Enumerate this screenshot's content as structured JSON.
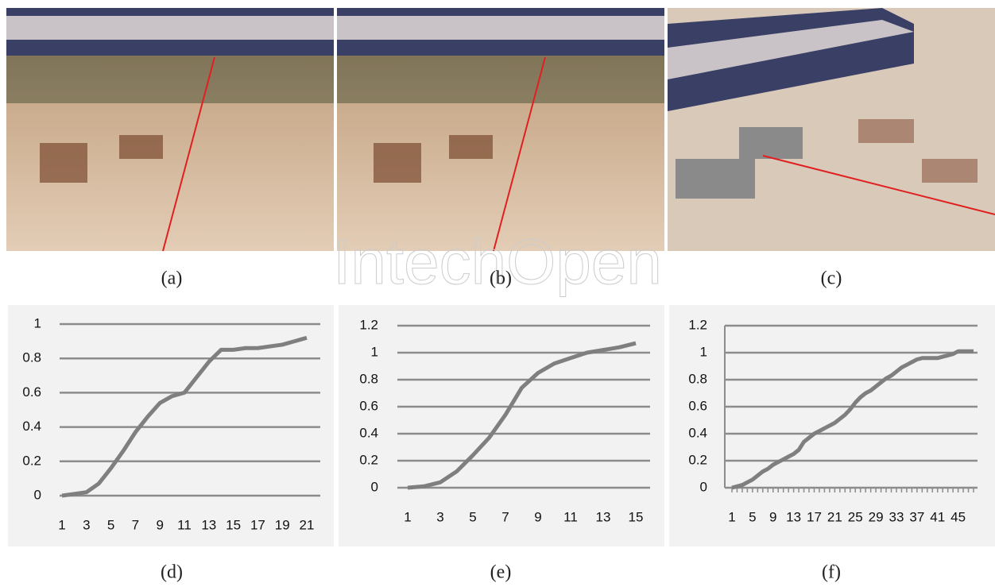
{
  "watermark": "IntechOpen",
  "captions": [
    "(a)",
    "(b)",
    "(c)",
    "(d)",
    "(e)",
    "(f)"
  ],
  "chart_data": [
    {
      "type": "line",
      "color": "#7f7f7f",
      "grid": true,
      "categories": [
        "1",
        null,
        "3",
        null,
        "5",
        null,
        "7",
        null,
        "9",
        null,
        "11",
        null,
        "13",
        null,
        "15",
        null,
        "17",
        null,
        "19",
        null,
        "21"
      ],
      "values": [
        0,
        0.01,
        0.02,
        0.07,
        0.16,
        0.26,
        0.37,
        0.46,
        0.54,
        0.58,
        0.6,
        0.69,
        0.78,
        0.85,
        0.85,
        0.86,
        0.86,
        0.87,
        0.88,
        0.9,
        0.92
      ],
      "ylim": [
        0,
        1
      ],
      "yticks": [
        0,
        0.2,
        0.4,
        0.6,
        0.8,
        1
      ]
    },
    {
      "type": "line",
      "color": "#7f7f7f",
      "grid": true,
      "categories": [
        "1",
        null,
        "3",
        null,
        "5",
        null,
        "7",
        null,
        "9",
        null,
        "11",
        null,
        "13",
        null,
        "15"
      ],
      "values": [
        0,
        0.01,
        0.04,
        0.12,
        0.24,
        0.37,
        0.54,
        0.74,
        0.85,
        0.92,
        0.96,
        1.0,
        1.02,
        1.04,
        1.07
      ],
      "ylim": [
        0,
        1.2
      ],
      "yticks": [
        0,
        0.2,
        0.4,
        0.6,
        0.8,
        1,
        1.2
      ]
    },
    {
      "type": "line",
      "color": "#7f7f7f",
      "grid": true,
      "categories": [
        "1",
        null,
        null,
        null,
        "5",
        null,
        null,
        null,
        "9",
        null,
        null,
        null,
        "13",
        null,
        null,
        null,
        "17",
        null,
        null,
        null,
        "21",
        null,
        null,
        null,
        "25",
        null,
        null,
        null,
        "29",
        null,
        null,
        null,
        "33",
        null,
        null,
        null,
        "37",
        null,
        null,
        null,
        "41",
        null,
        null,
        null,
        "45",
        null,
        null,
        null
      ],
      "values": [
        0,
        0.01,
        0.02,
        0.04,
        0.06,
        0.09,
        0.12,
        0.14,
        0.17,
        0.19,
        0.21,
        0.23,
        0.25,
        0.28,
        0.34,
        0.37,
        0.4,
        0.42,
        0.44,
        0.46,
        0.48,
        0.51,
        0.54,
        0.58,
        0.63,
        0.67,
        0.7,
        0.72,
        0.75,
        0.78,
        0.81,
        0.83,
        0.86,
        0.89,
        0.91,
        0.93,
        0.95,
        0.96,
        0.96,
        0.96,
        0.96,
        0.97,
        0.98,
        0.99,
        1.01,
        1.01,
        1.01,
        1.01
      ],
      "ylim": [
        0,
        1.2
      ],
      "yticks": [
        0,
        0.2,
        0.4,
        0.6,
        0.8,
        1,
        1.2
      ]
    }
  ]
}
